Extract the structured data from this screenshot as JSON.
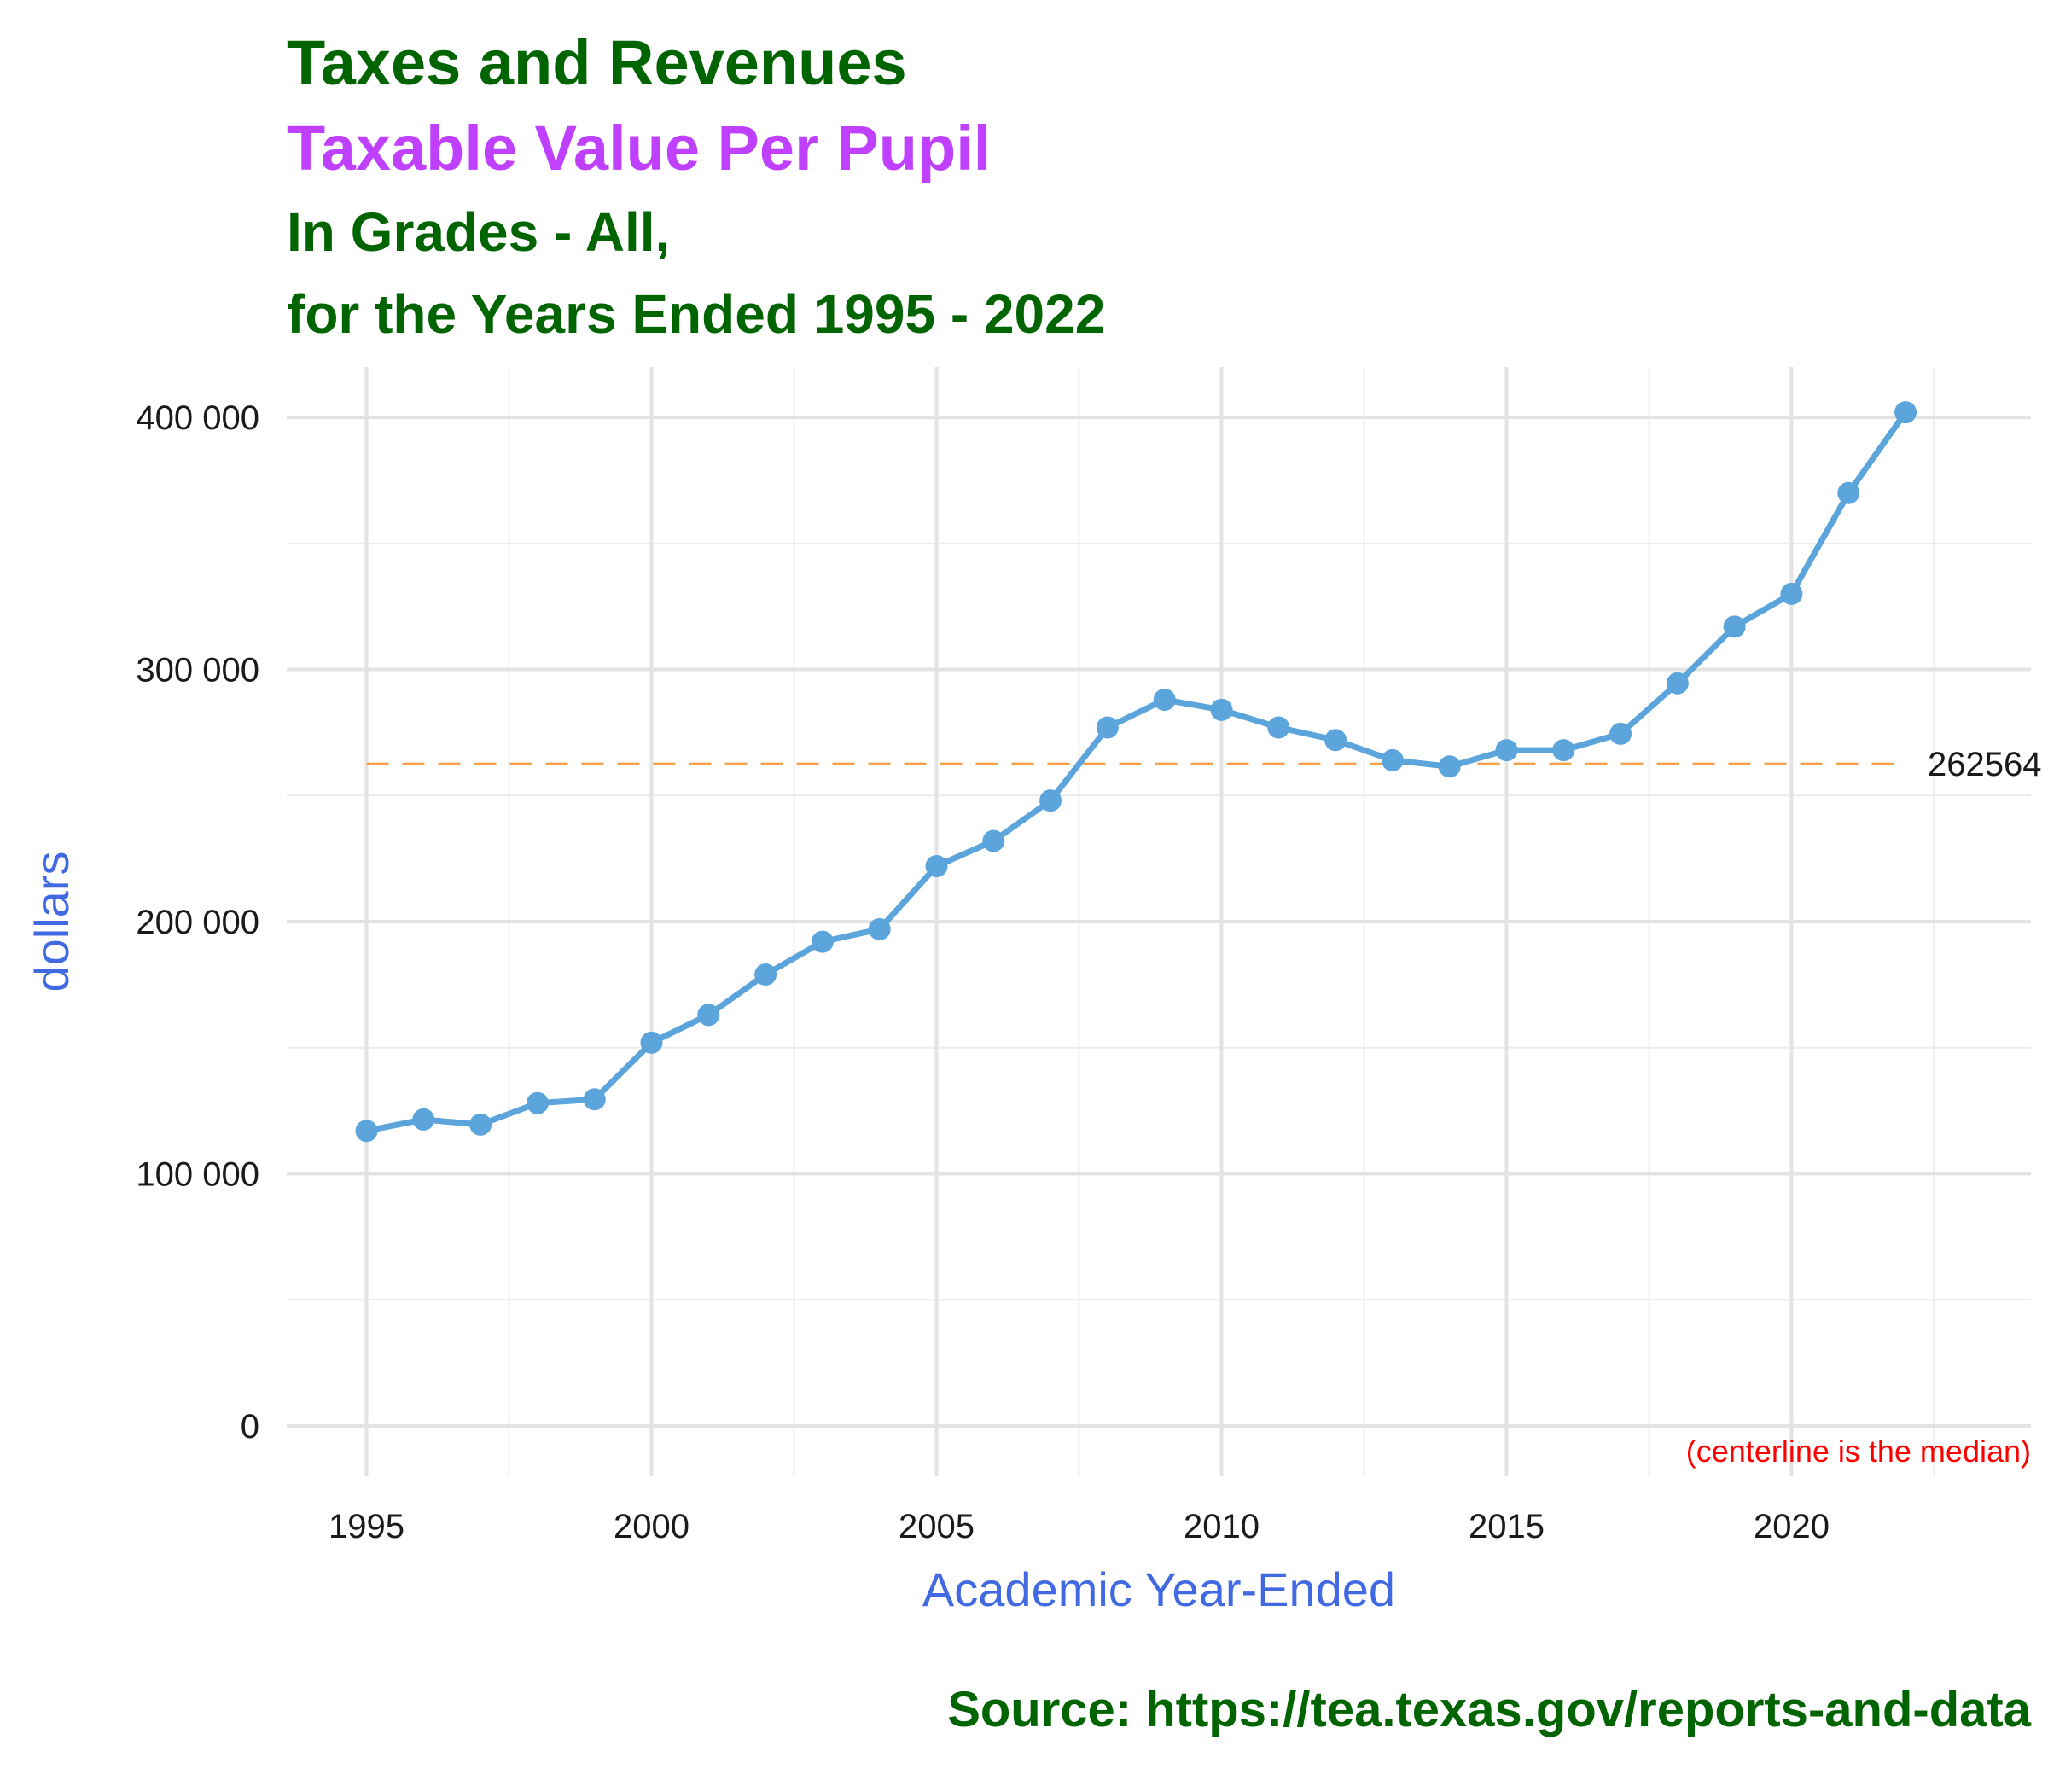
{
  "header": {
    "title": "Taxes and Revenues",
    "subtitle": "Taxable Value Per Pupil",
    "line3": "In Grades - All,",
    "line4": "for the Years Ended 1995 - 2022"
  },
  "source": "Source:  https://tea.texas.gov/reports-and-data",
  "colors": {
    "title": "#006400",
    "subtitle": "#bf40ff",
    "axis_label": "#4169e1",
    "line": "#5ba4dc",
    "median": "#f5a04a",
    "note": "#ff0000"
  },
  "chart_data": {
    "type": "line",
    "xlabel": "Academic Year-Ended",
    "ylabel": "dollars",
    "xlim": [
      1993.6,
      2024.2
    ],
    "ylim": [
      -20000,
      420000
    ],
    "x_ticks": [
      1995,
      2000,
      2005,
      2010,
      2015,
      2020
    ],
    "y_ticks": [
      0,
      100000,
      200000,
      300000,
      400000
    ],
    "y_tick_labels": [
      "0",
      "100 000",
      "200 000",
      "300 000",
      "400 000"
    ],
    "grid": true,
    "series": [
      {
        "x": [
          1995,
          1996,
          1997,
          1998,
          1999,
          2000,
          2001,
          2002,
          2003,
          2004,
          2005,
          2006,
          2007,
          2008,
          2009,
          2010,
          2011,
          2012,
          2013,
          2014,
          2015,
          2016,
          2017,
          2018,
          2019,
          2020,
          2021,
          2022
        ],
        "values": [
          117000,
          121500,
          119500,
          128000,
          129500,
          152000,
          163000,
          179000,
          192000,
          197000,
          222000,
          232000,
          248000,
          277000,
          288000,
          284000,
          277000,
          272000,
          264000,
          261500,
          268000,
          268000,
          274500,
          294500,
          317000,
          330000,
          370000,
          402000
        ]
      }
    ],
    "median": 262564,
    "median_label": "262564",
    "note": "(centerline is the median)"
  }
}
